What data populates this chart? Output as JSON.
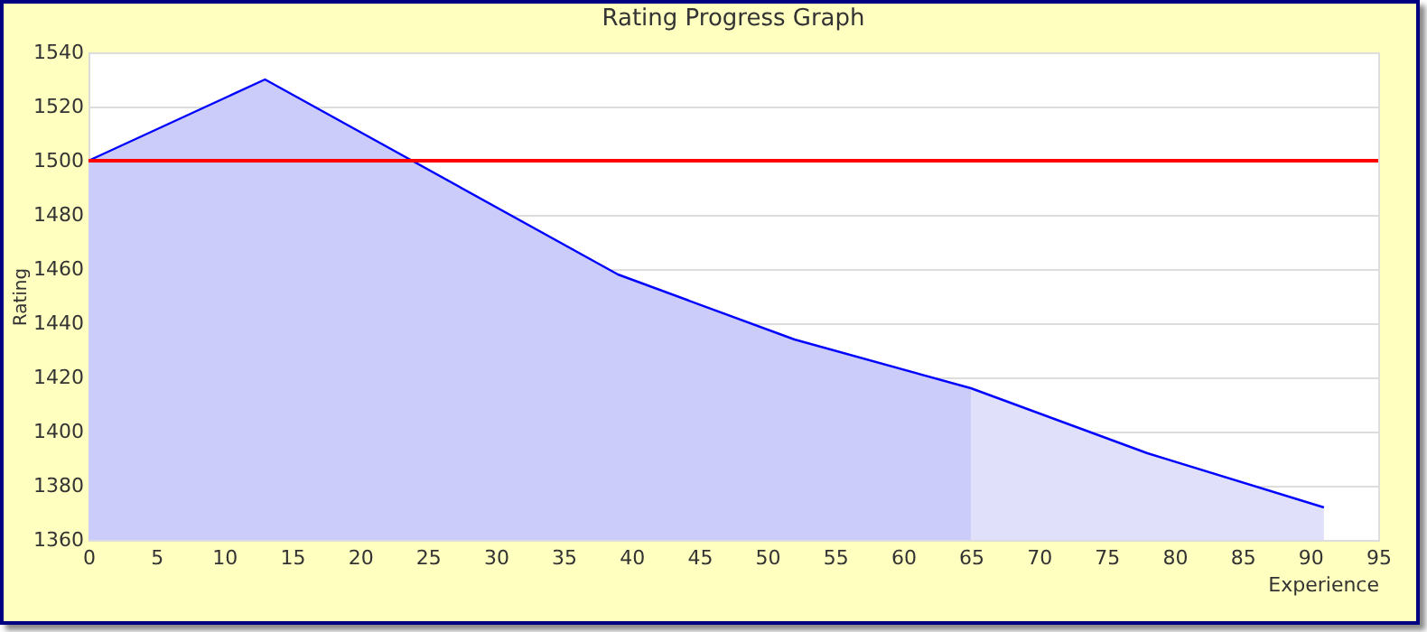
{
  "chart_data": {
    "type": "area",
    "title": "Rating Progress Graph",
    "xlabel": "Experience",
    "ylabel": "Rating",
    "series": [
      {
        "x": [
          0,
          13,
          39,
          52,
          65
        ],
        "values": [
          1500,
          1530,
          1458,
          1434,
          1416
        ],
        "color": "#ccccfa"
      },
      {
        "x": [
          65,
          78,
          91
        ],
        "values": [
          1416,
          1392,
          1372
        ],
        "color": "#e0e0fa"
      },
      {
        "type": "line",
        "x": [
          0,
          13,
          39,
          52,
          65,
          78,
          91
        ],
        "values": [
          1500,
          1530,
          1458,
          1434,
          1416,
          1392,
          1372
        ],
        "color": "#0000ff"
      }
    ],
    "ref_lines": [
      {
        "axis": "y",
        "value": 1500,
        "color": "#ff0000"
      }
    ],
    "xlim": [
      0,
      95
    ],
    "xticks": [
      0,
      5,
      10,
      15,
      20,
      25,
      30,
      35,
      40,
      45,
      50,
      55,
      60,
      65,
      70,
      75,
      80,
      85,
      90,
      95
    ],
    "ylim": [
      1360,
      1540
    ],
    "yticks": [
      1360,
      1380,
      1400,
      1420,
      1440,
      1460,
      1480,
      1500,
      1520,
      1540
    ],
    "grid": "y"
  }
}
